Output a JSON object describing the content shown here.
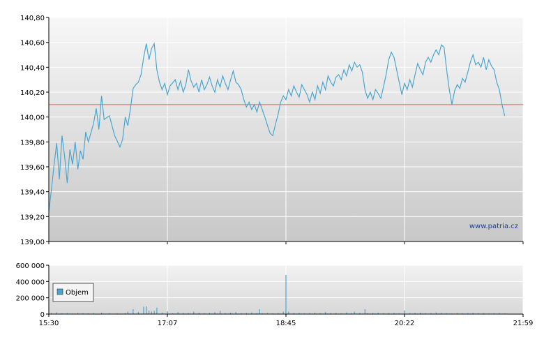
{
  "chart_data": [
    {
      "type": "line",
      "title": "",
      "xlabel": "",
      "ylabel": "",
      "ylim": [
        139.0,
        140.8
      ],
      "y_ticks": [
        "139,00",
        "139,20",
        "139,40",
        "139,60",
        "139,80",
        "140,00",
        "140,20",
        "140,40",
        "140,60",
        "140,80"
      ],
      "reference_line": 140.1,
      "reference_color": "#e06060",
      "line_color": "#4aa6d0",
      "grid": true,
      "watermark": "www.patria.cz",
      "series": [
        {
          "points": [
            [
              0,
              139.24
            ],
            [
              1,
              139.42
            ],
            [
              2,
              139.62
            ],
            [
              3,
              139.79
            ],
            [
              4,
              139.5
            ],
            [
              5,
              139.85
            ],
            [
              6,
              139.68
            ],
            [
              7,
              139.47
            ],
            [
              8,
              139.74
            ],
            [
              9,
              139.62
            ],
            [
              10,
              139.8
            ],
            [
              11,
              139.58
            ],
            [
              12,
              139.73
            ],
            [
              13,
              139.66
            ],
            [
              14,
              139.88
            ],
            [
              15,
              139.8
            ],
            [
              17,
              139.95
            ],
            [
              18,
              140.07
            ],
            [
              19,
              139.9
            ],
            [
              20,
              140.17
            ],
            [
              21,
              139.98
            ],
            [
              23,
              140.01
            ],
            [
              25,
              139.85
            ],
            [
              27,
              139.76
            ],
            [
              28,
              139.82
            ],
            [
              29,
              140.0
            ],
            [
              30,
              139.93
            ],
            [
              31,
              140.07
            ],
            [
              32,
              140.23
            ],
            [
              33,
              140.26
            ],
            [
              34,
              140.28
            ],
            [
              35,
              140.34
            ],
            [
              36,
              140.48
            ],
            [
              37,
              140.59
            ],
            [
              38,
              140.46
            ],
            [
              39,
              140.55
            ],
            [
              40,
              140.59
            ],
            [
              41,
              140.38
            ],
            [
              42,
              140.28
            ],
            [
              43,
              140.22
            ],
            [
              44,
              140.27
            ],
            [
              45,
              140.18
            ],
            [
              46,
              140.25
            ],
            [
              48,
              140.3
            ],
            [
              49,
              140.22
            ],
            [
              50,
              140.29
            ],
            [
              51,
              140.2
            ],
            [
              52,
              140.26
            ],
            [
              53,
              140.38
            ],
            [
              54,
              140.29
            ],
            [
              55,
              140.24
            ],
            [
              56,
              140.27
            ],
            [
              57,
              140.2
            ],
            [
              58,
              140.3
            ],
            [
              59,
              140.22
            ],
            [
              60,
              140.26
            ],
            [
              61,
              140.32
            ],
            [
              62,
              140.25
            ],
            [
              63,
              140.2
            ],
            [
              64,
              140.3
            ],
            [
              65,
              140.24
            ],
            [
              66,
              140.33
            ],
            [
              67,
              140.27
            ],
            [
              68,
              140.22
            ],
            [
              69,
              140.3
            ],
            [
              70,
              140.37
            ],
            [
              71,
              140.28
            ],
            [
              72,
              140.26
            ],
            [
              73,
              140.22
            ],
            [
              74,
              140.14
            ],
            [
              75,
              140.08
            ],
            [
              76,
              140.12
            ],
            [
              77,
              140.06
            ],
            [
              78,
              140.1
            ],
            [
              79,
              140.04
            ],
            [
              80,
              140.12
            ],
            [
              81,
              140.06
            ],
            [
              82,
              140.0
            ],
            [
              83,
              139.93
            ],
            [
              84,
              139.87
            ],
            [
              85,
              139.85
            ],
            [
              86,
              139.94
            ],
            [
              87,
              140.02
            ],
            [
              88,
              140.12
            ],
            [
              89,
              140.17
            ],
            [
              90,
              140.14
            ],
            [
              91,
              140.22
            ],
            [
              92,
              140.17
            ],
            [
              93,
              140.25
            ],
            [
              94,
              140.2
            ],
            [
              95,
              140.16
            ],
            [
              96,
              140.26
            ],
            [
              97,
              140.22
            ],
            [
              98,
              140.18
            ],
            [
              99,
              140.12
            ],
            [
              100,
              140.2
            ],
            [
              101,
              140.14
            ],
            [
              102,
              140.25
            ],
            [
              103,
              140.19
            ],
            [
              104,
              140.28
            ],
            [
              105,
              140.22
            ],
            [
              106,
              140.33
            ],
            [
              107,
              140.28
            ],
            [
              108,
              140.25
            ],
            [
              109,
              140.32
            ],
            [
              110,
              140.34
            ],
            [
              111,
              140.3
            ],
            [
              112,
              140.38
            ],
            [
              113,
              140.33
            ],
            [
              114,
              140.42
            ],
            [
              115,
              140.37
            ],
            [
              116,
              140.44
            ],
            [
              117,
              140.4
            ],
            [
              118,
              140.42
            ],
            [
              119,
              140.36
            ],
            [
              120,
              140.22
            ],
            [
              121,
              140.15
            ],
            [
              122,
              140.2
            ],
            [
              123,
              140.14
            ],
            [
              124,
              140.22
            ],
            [
              125,
              140.19
            ],
            [
              126,
              140.15
            ],
            [
              127,
              140.24
            ],
            [
              128,
              140.34
            ],
            [
              129,
              140.46
            ],
            [
              130,
              140.52
            ],
            [
              131,
              140.48
            ],
            [
              132,
              140.38
            ],
            [
              133,
              140.28
            ],
            [
              134,
              140.18
            ],
            [
              135,
              140.27
            ],
            [
              136,
              140.22
            ],
            [
              137,
              140.3
            ],
            [
              138,
              140.24
            ],
            [
              139,
              140.34
            ],
            [
              140,
              140.43
            ],
            [
              141,
              140.38
            ],
            [
              142,
              140.34
            ],
            [
              143,
              140.44
            ],
            [
              144,
              140.48
            ],
            [
              145,
              140.44
            ],
            [
              146,
              140.5
            ],
            [
              147,
              140.54
            ],
            [
              148,
              140.5
            ],
            [
              149,
              140.58
            ],
            [
              150,
              140.56
            ],
            [
              151,
              140.38
            ],
            [
              152,
              140.22
            ],
            [
              153,
              140.1
            ],
            [
              154,
              140.21
            ],
            [
              155,
              140.26
            ],
            [
              156,
              140.23
            ],
            [
              157,
              140.31
            ],
            [
              158,
              140.28
            ],
            [
              159,
              140.36
            ],
            [
              160,
              140.44
            ],
            [
              161,
              140.5
            ],
            [
              162,
              140.42
            ],
            [
              163,
              140.44
            ],
            [
              164,
              140.4
            ],
            [
              165,
              140.48
            ],
            [
              166,
              140.38
            ],
            [
              167,
              140.46
            ],
            [
              168,
              140.41
            ],
            [
              169,
              140.38
            ],
            [
              170,
              140.28
            ],
            [
              171,
              140.22
            ],
            [
              172,
              140.1
            ],
            [
              173,
              140.01
            ]
          ]
        }
      ]
    },
    {
      "type": "bar",
      "title": "",
      "xlabel": "",
      "ylabel": "",
      "ylim": [
        0,
        600000
      ],
      "y_ticks": [
        "0",
        "200 000",
        "400 000",
        "600 000"
      ],
      "bar_color": "#4aa6d0",
      "grid": true,
      "legend": {
        "label": "Objem",
        "position": "left"
      },
      "series": [
        {
          "name": "Objem",
          "points": [
            [
              1,
              15000
            ],
            [
              3,
              22000
            ],
            [
              5,
              9000
            ],
            [
              7,
              12000
            ],
            [
              9,
              8000
            ],
            [
              11,
              14000
            ],
            [
              13,
              10000
            ],
            [
              15,
              9000
            ],
            [
              17,
              12000
            ],
            [
              20,
              18000
            ],
            [
              23,
              10000
            ],
            [
              26,
              9000
            ],
            [
              29,
              11000
            ],
            [
              30,
              30000
            ],
            [
              32,
              60000
            ],
            [
              34,
              25000
            ],
            [
              36,
              90000
            ],
            [
              37,
              95000
            ],
            [
              38,
              45000
            ],
            [
              39,
              30000
            ],
            [
              40,
              40000
            ],
            [
              41,
              80000
            ],
            [
              43,
              20000
            ],
            [
              45,
              35000
            ],
            [
              47,
              10000
            ],
            [
              49,
              25000
            ],
            [
              51,
              15000
            ],
            [
              53,
              12000
            ],
            [
              55,
              30000
            ],
            [
              57,
              18000
            ],
            [
              59,
              10000
            ],
            [
              61,
              15000
            ],
            [
              63,
              22000
            ],
            [
              65,
              40000
            ],
            [
              67,
              12000
            ],
            [
              69,
              18000
            ],
            [
              71,
              25000
            ],
            [
              73,
              10000
            ],
            [
              75,
              15000
            ],
            [
              77,
              20000
            ],
            [
              79,
              12000
            ],
            [
              80,
              60000
            ],
            [
              81,
              10000
            ],
            [
              83,
              15000
            ],
            [
              85,
              8000
            ],
            [
              87,
              12000
            ],
            [
              89,
              30000
            ],
            [
              90,
              480000
            ],
            [
              91,
              30000
            ],
            [
              93,
              12000
            ],
            [
              95,
              15000
            ],
            [
              97,
              10000
            ],
            [
              99,
              12000
            ],
            [
              101,
              18000
            ],
            [
              103,
              10000
            ],
            [
              105,
              25000
            ],
            [
              107,
              12000
            ],
            [
              109,
              15000
            ],
            [
              111,
              10000
            ],
            [
              113,
              20000
            ],
            [
              115,
              12000
            ],
            [
              116,
              30000
            ],
            [
              118,
              15000
            ],
            [
              120,
              60000
            ],
            [
              121,
              10000
            ],
            [
              123,
              15000
            ],
            [
              125,
              18000
            ],
            [
              127,
              10000
            ],
            [
              129,
              12000
            ],
            [
              131,
              15000
            ],
            [
              133,
              10000
            ],
            [
              135,
              45000
            ],
            [
              137,
              12000
            ],
            [
              139,
              15000
            ],
            [
              141,
              18000
            ],
            [
              143,
              10000
            ],
            [
              145,
              12000
            ],
            [
              147,
              20000
            ],
            [
              149,
              15000
            ],
            [
              151,
              10000
            ],
            [
              153,
              8000
            ],
            [
              155,
              12000
            ],
            [
              157,
              10000
            ],
            [
              159,
              12000
            ],
            [
              161,
              15000
            ],
            [
              163,
              10000
            ],
            [
              165,
              12000
            ],
            [
              167,
              8000
            ],
            [
              169,
              10000
            ],
            [
              171,
              12000
            ],
            [
              173,
              8000
            ]
          ]
        }
      ]
    }
  ],
  "x_ticks": [
    "15:30",
    "17:07",
    "18:45",
    "20:22",
    "21:59"
  ]
}
